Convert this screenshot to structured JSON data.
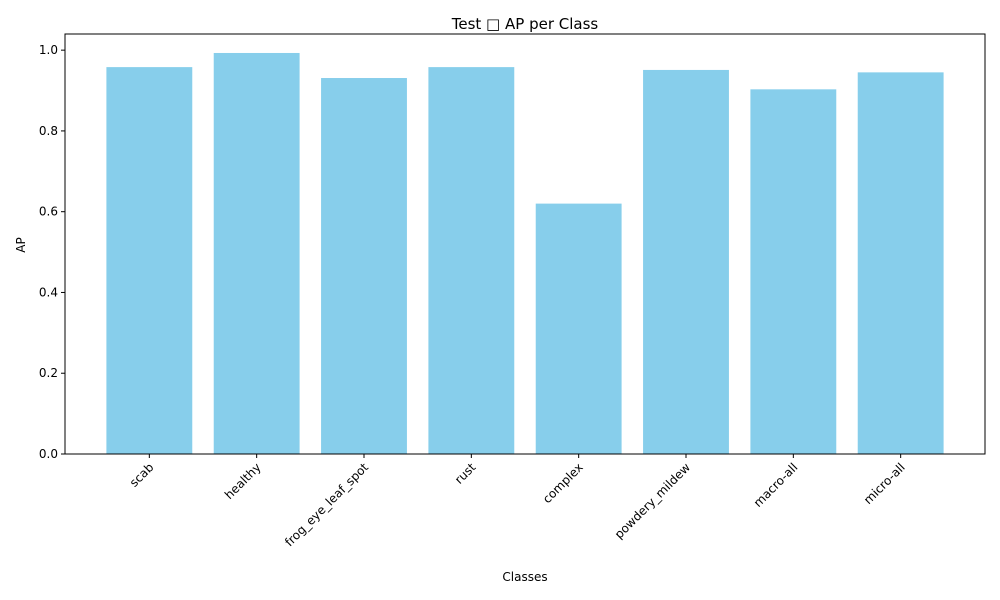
{
  "chart_data": {
    "type": "bar",
    "title": "Test □ AP per Class",
    "xlabel": "Classes",
    "ylabel": "AP",
    "categories": [
      "scab",
      "healthy",
      "frog_eye_leaf_spot",
      "rust",
      "complex",
      "powdery_mildew",
      "macro-all",
      "micro-all"
    ],
    "values": [
      0.958,
      0.993,
      0.931,
      0.958,
      0.62,
      0.951,
      0.903,
      0.945
    ],
    "ylim": [
      0,
      1.04
    ],
    "yticks": [
      0.0,
      0.2,
      0.4,
      0.6,
      0.8,
      1.0
    ],
    "ytick_labels": [
      "0.0",
      "0.2",
      "0.4",
      "0.6",
      "0.8",
      "1.0"
    ],
    "grid": false,
    "bar_color": "#87ceeb",
    "x_tick_rotation_deg": 45
  }
}
